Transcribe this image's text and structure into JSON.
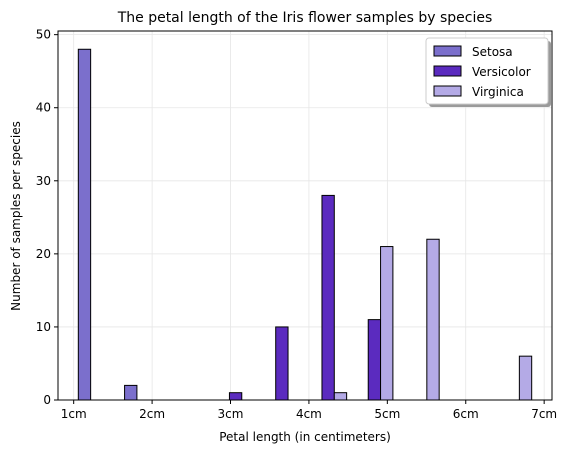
{
  "chart_data": {
    "type": "bar",
    "title": "The petal length of the Iris flower samples by species",
    "xlabel": "Petal length (in centimeters)",
    "ylabel": "Number of samples per species",
    "x_ticks": [
      "1cm",
      "2cm",
      "3cm",
      "4cm",
      "5cm",
      "6cm",
      "7cm"
    ],
    "x_tick_values": [
      1,
      2,
      3,
      4,
      5,
      6,
      7
    ],
    "xlim": [
      0.8,
      7.1
    ],
    "ylim": [
      0,
      50.5
    ],
    "y_ticks": [
      0,
      10,
      20,
      30,
      40,
      50
    ],
    "grid": true,
    "legend_position": "top-right",
    "bin_edges": [
      1.0,
      1.59,
      2.18,
      2.77,
      3.36,
      3.95,
      4.54,
      5.13,
      5.72,
      6.31,
      6.9
    ],
    "series": [
      {
        "name": "Setosa",
        "color": "#7b6fcc",
        "values": [
          48,
          2,
          0,
          0,
          0,
          0,
          0,
          0,
          0,
          0
        ]
      },
      {
        "name": "Versicolor",
        "color": "#5b2bbf",
        "values": [
          0,
          0,
          0,
          1,
          10,
          28,
          11,
          0,
          0,
          0
        ]
      },
      {
        "name": "Virginica",
        "color": "#b4aae6",
        "values": [
          0,
          0,
          0,
          0,
          0,
          1,
          21,
          22,
          0,
          6
        ]
      }
    ]
  }
}
